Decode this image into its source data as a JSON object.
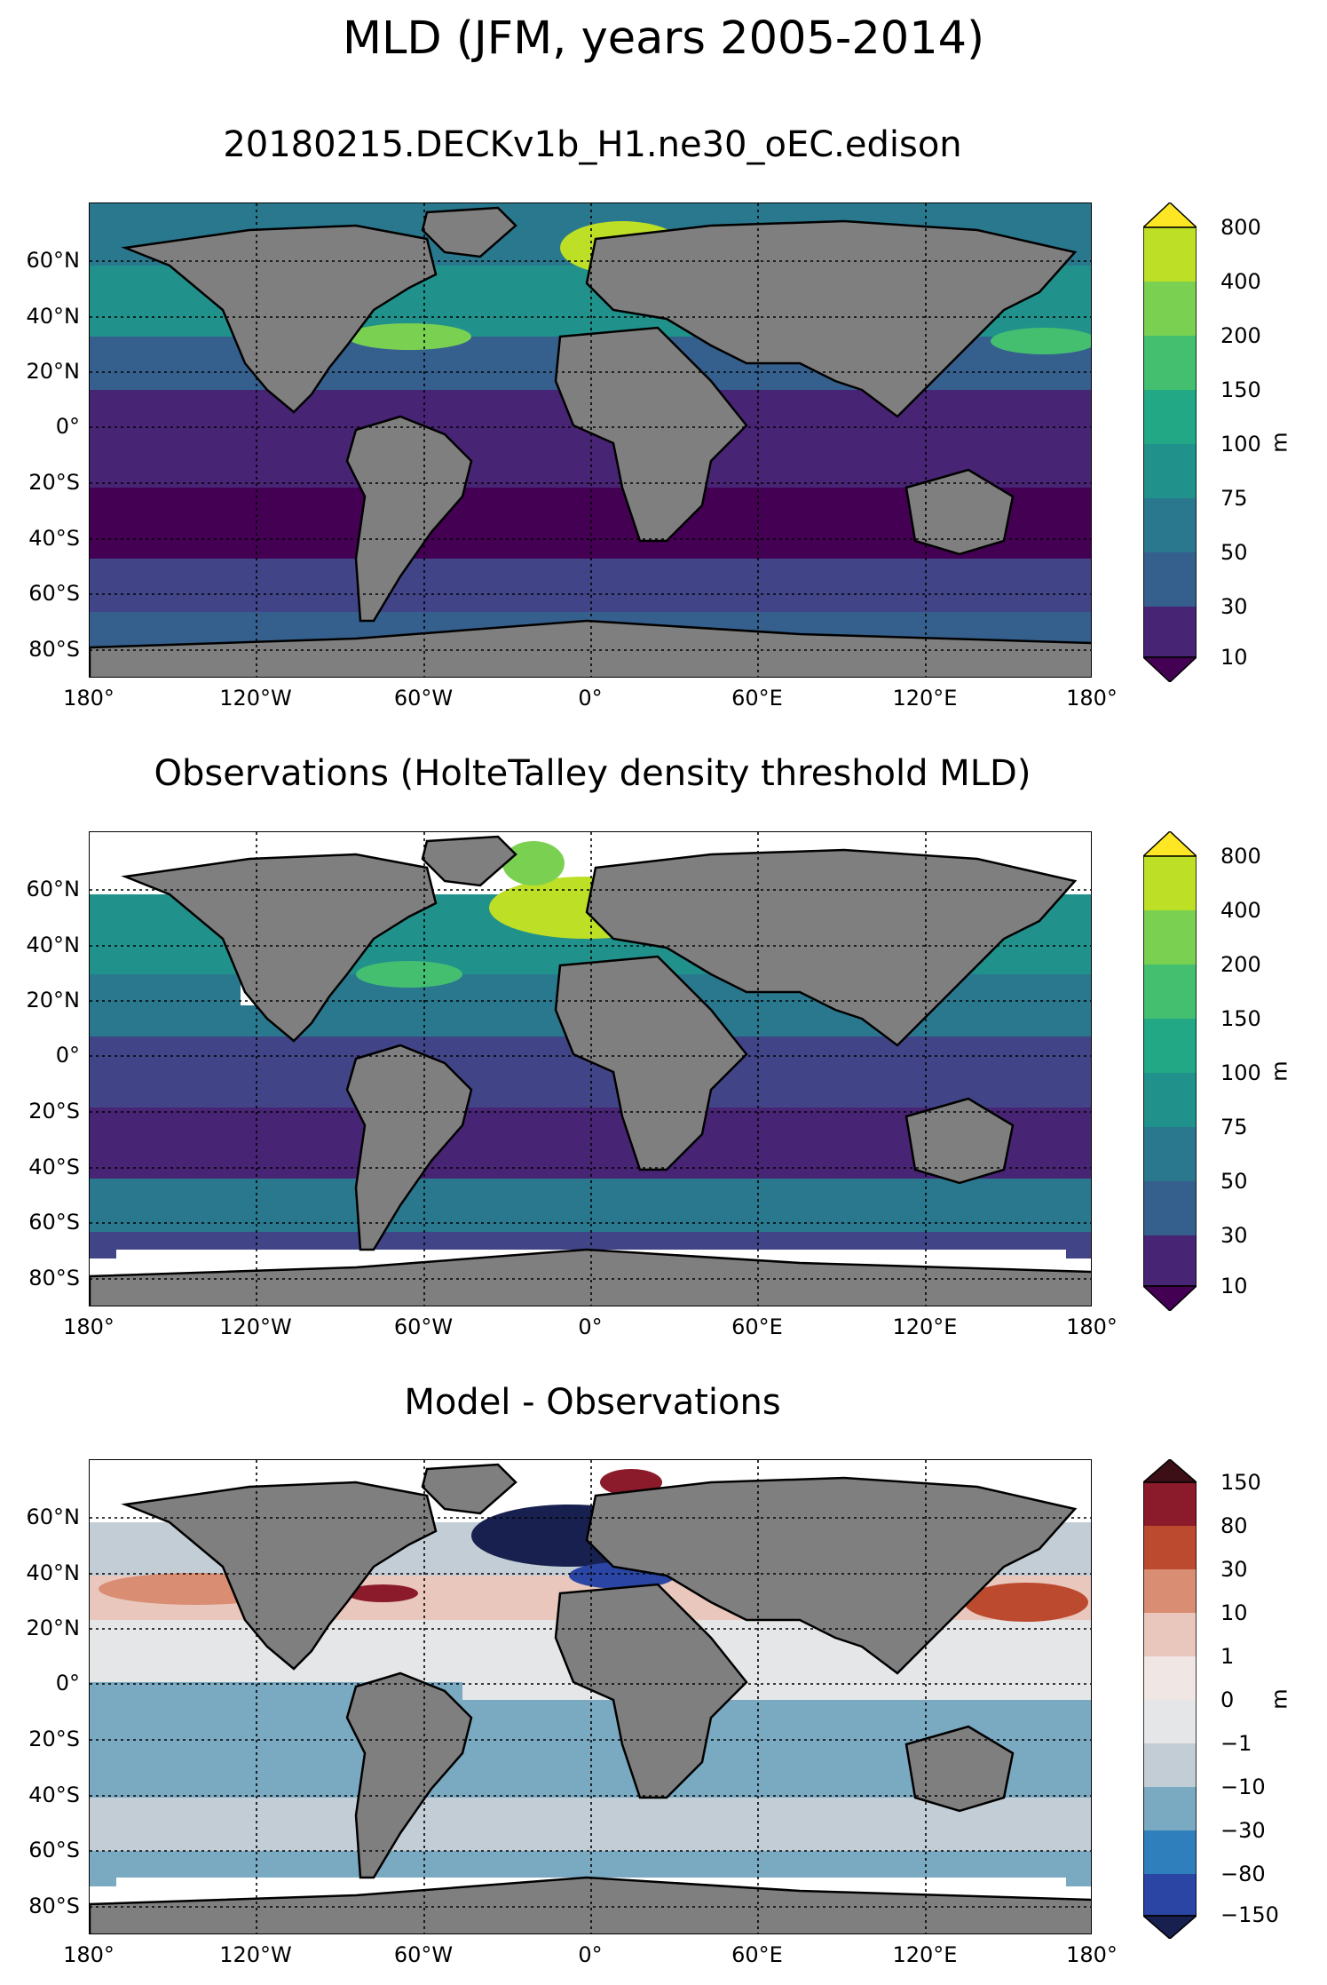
{
  "figure": {
    "title": "MLD (JFM, years 2005-2014)"
  },
  "lat_labels": [
    "60°N",
    "40°N",
    "20°N",
    "0°",
    "20°S",
    "40°S",
    "60°S",
    "80°S"
  ],
  "lon_labels": [
    "180°",
    "120°W",
    "60°W",
    "0°",
    "60°E",
    "120°E",
    "180°"
  ],
  "colors": {
    "land": "#7f7f7f",
    "coast": "#000000",
    "missing": "#ffffff"
  },
  "panels": [
    {
      "title": "20180215.DECKv1b_H1.ne30_oEC.edison",
      "colorbar_unit": "m",
      "colorbar_ticks": [
        "800",
        "400",
        "200",
        "150",
        "100",
        "75",
        "50",
        "30",
        "10"
      ],
      "colorbar_colors": [
        "#fde725",
        "#bddf26",
        "#7ad151",
        "#44bf70",
        "#22a884",
        "#21918c",
        "#2a788e",
        "#355f8d",
        "#414487",
        "#482475",
        "#440154"
      ]
    },
    {
      "title": "Observations (HolteTalley density threshold MLD)",
      "colorbar_unit": "m",
      "colorbar_ticks": [
        "800",
        "400",
        "200",
        "150",
        "100",
        "75",
        "50",
        "30",
        "10"
      ],
      "colorbar_colors": [
        "#fde725",
        "#bddf26",
        "#7ad151",
        "#44bf70",
        "#22a884",
        "#21918c",
        "#2a788e",
        "#355f8d",
        "#414487",
        "#482475",
        "#440154"
      ]
    },
    {
      "title": "Model - Observations",
      "colorbar_unit": "m",
      "colorbar_ticks": [
        "150",
        "80",
        "30",
        "10",
        "1",
        "0",
        "−1",
        "−10",
        "−30",
        "−80",
        "−150"
      ],
      "colorbar_colors": [
        "#3b0f15",
        "#8b1a2a",
        "#bb4a2e",
        "#d98d73",
        "#e9c7bd",
        "#f0e6e4",
        "#e4e6e8",
        "#c3cdd5",
        "#7aa9c2",
        "#2f7fbd",
        "#2a45a3",
        "#17204e"
      ]
    }
  ]
}
